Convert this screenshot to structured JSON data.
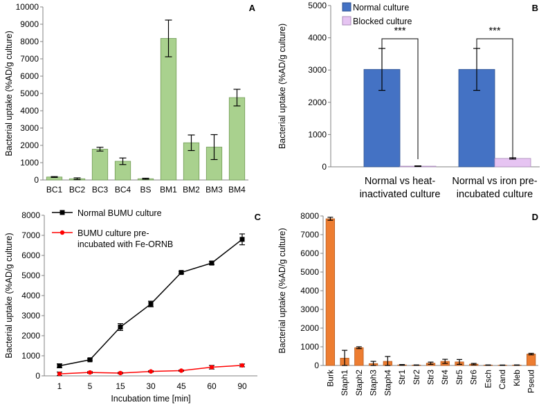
{
  "colors": {
    "green": "#a9d18e",
    "blue": "#4472c4",
    "pink": "#e6c4f2",
    "orange": "#ed7d31",
    "black": "#000000",
    "red": "#ff0000"
  },
  "chart_data": [
    {
      "id": "A",
      "type": "bar",
      "panel_label": "A",
      "ylabel": "Bacterial uptake (%AD/g culture)",
      "ylim": [
        0,
        10000
      ],
      "yticks": [
        "0",
        "1000",
        "2000",
        "3000",
        "4000",
        "5000",
        "6000",
        "7000",
        "8000",
        "9000",
        "10000"
      ],
      "categories": [
        "BC1",
        "BC2",
        "BC3",
        "BC4",
        "BS",
        "BM1",
        "BM2",
        "BM3",
        "BM4"
      ],
      "values": [
        170,
        70,
        1780,
        1080,
        70,
        8180,
        2150,
        1900,
        4760
      ],
      "errors": [
        25,
        50,
        110,
        190,
        30,
        1060,
        450,
        720,
        480
      ]
    },
    {
      "id": "B",
      "type": "bar",
      "panel_label": "B",
      "ylabel": "Bacterial uptake (%AD/g culture)",
      "ylim": [
        0,
        5000
      ],
      "yticks": [
        "0",
        "1000",
        "2000",
        "3000",
        "4000",
        "5000"
      ],
      "groups": [
        [
          "Normal vs heat-",
          "inactivated culture"
        ],
        [
          "Normal vs iron pre-",
          "incubated culture"
        ]
      ],
      "series": [
        {
          "name": "Normal culture",
          "values": [
            3020,
            3020
          ],
          "errors": [
            650,
            650
          ]
        },
        {
          "name": "Blocked culture",
          "values": [
            20,
            260
          ],
          "errors": [
            10,
            20
          ]
        }
      ],
      "significance": [
        "***",
        "***"
      ]
    },
    {
      "id": "C",
      "type": "line",
      "panel_label": "C",
      "ylabel": "Bacterial uptake (%AD/g culture)",
      "xlabel": "Incubation time [min]",
      "ylim": [
        0,
        8000
      ],
      "yticks": [
        "0",
        "1000",
        "2000",
        "3000",
        "4000",
        "5000",
        "6000",
        "7000",
        "8000"
      ],
      "x": [
        "1",
        "5",
        "15",
        "30",
        "45",
        "60",
        "90"
      ],
      "series": [
        {
          "name": "Normal BUMU culture",
          "values": [
            500,
            800,
            2430,
            3580,
            5150,
            5620,
            6800
          ],
          "errors": [
            100,
            50,
            170,
            140,
            50,
            80,
            270
          ]
        },
        {
          "name": [
            "BUMU culture pre-",
            "incubated with Fe-ORNB"
          ],
          "values": [
            100,
            170,
            140,
            220,
            260,
            430,
            520
          ],
          "errors": [
            90,
            40,
            30,
            30,
            30,
            90,
            70
          ]
        }
      ]
    },
    {
      "id": "D",
      "type": "bar",
      "panel_label": "D",
      "ylabel": "Bacterial uptake (%AD/g culture)",
      "ylim": [
        0,
        8000
      ],
      "yticks": [
        "0",
        "1000",
        "2000",
        "3000",
        "4000",
        "5000",
        "6000",
        "7000",
        "8000"
      ],
      "categories": [
        "Burk",
        "Staph1",
        "Staph2",
        "Staph3",
        "Staph4",
        "Str1",
        "Str2",
        "Str3",
        "Str4",
        "Str5",
        "Str6",
        "Esch",
        "Cand",
        "Kleb",
        "Pseud"
      ],
      "values": [
        7850,
        390,
        950,
        100,
        220,
        30,
        20,
        120,
        220,
        190,
        70,
        20,
        15,
        20,
        610
      ],
      "errors": [
        80,
        420,
        50,
        120,
        260,
        20,
        10,
        60,
        110,
        130,
        40,
        10,
        10,
        10,
        40
      ]
    }
  ]
}
